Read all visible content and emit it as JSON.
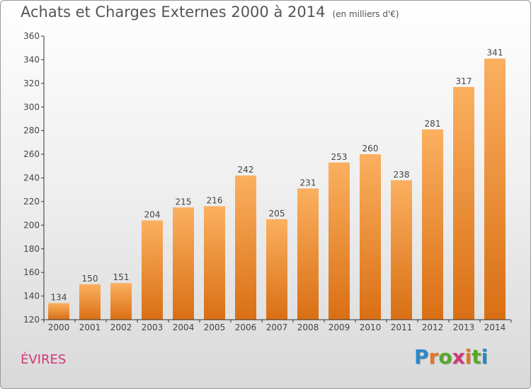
{
  "title": "Achats et Charges Externes 2000 à 2014",
  "unit": "(en milliers d'€)",
  "town": "ÉVIRES",
  "logo": {
    "text": "Proxiti",
    "letter_colors": [
      "#2a88c8",
      "#e8731f",
      "#56a82c",
      "#d0387a",
      "#e8731f",
      "#56a82c",
      "#2a88c8"
    ]
  },
  "colors": {
    "bar_top": "#fbb060",
    "bar_bottom": "#d96f14",
    "axis": "#333333",
    "text": "#444444",
    "town": "#d0387a"
  },
  "chart_data": {
    "type": "bar",
    "categories": [
      "2000",
      "2001",
      "2002",
      "2003",
      "2004",
      "2005",
      "2006",
      "2007",
      "2008",
      "2009",
      "2010",
      "2011",
      "2012",
      "2013",
      "2014"
    ],
    "values": [
      134,
      150,
      151,
      204,
      215,
      216,
      242,
      205,
      231,
      253,
      260,
      238,
      281,
      317,
      341
    ],
    "title": "Achats et Charges Externes 2000 à 2014",
    "ylim": [
      120,
      360
    ],
    "yticks": [
      120,
      140,
      160,
      180,
      200,
      220,
      240,
      260,
      280,
      300,
      320,
      340,
      360
    ],
    "grid": false,
    "data_labels": true
  }
}
